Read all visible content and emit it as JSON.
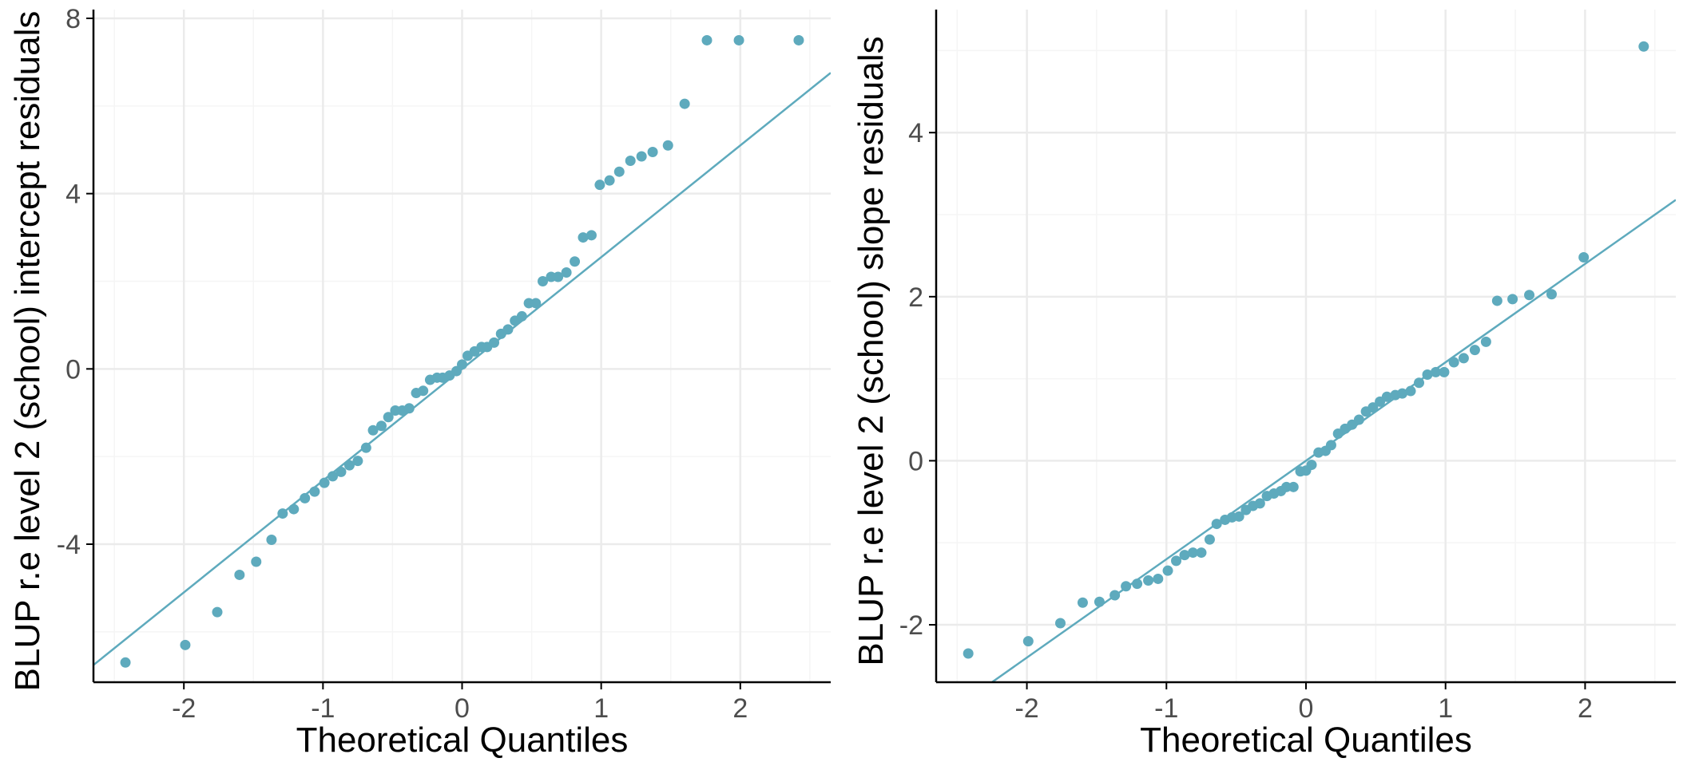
{
  "colors": {
    "point": "#5EAABD",
    "line": "#5EAABD",
    "grid_major": "#EBEBEB",
    "grid_minor": "#F5F5F5",
    "axis": "#000000",
    "tick_text": "#4D4D4D",
    "title_text": "#000000"
  },
  "chart_data": [
    {
      "type": "scatter",
      "title": "",
      "xlabel": "Theoretical Quantiles",
      "ylabel": "BLUP r.e level 2 (school) intercept residuals",
      "xlim": [
        -2.65,
        2.65
      ],
      "ylim": [
        -7.15,
        8.2
      ],
      "xticks": [
        -2,
        -1,
        0,
        1,
        2
      ],
      "xtick_labels": [
        "-2",
        "-1",
        "0",
        "1",
        "2"
      ],
      "yticks": [
        -4,
        0,
        4,
        8
      ],
      "ytick_labels": [
        "-4",
        "0",
        "4",
        "8"
      ],
      "grid": true,
      "reference_line": {
        "slope": 2.55,
        "intercept": 0.0
      },
      "x": [
        -2.42,
        -1.99,
        -1.76,
        -1.6,
        -1.48,
        -1.37,
        -1.29,
        -1.21,
        -1.13,
        -1.06,
        -0.99,
        -0.93,
        -0.87,
        -0.81,
        -0.75,
        -0.69,
        -0.64,
        -0.58,
        -0.53,
        -0.48,
        -0.43,
        -0.38,
        -0.33,
        -0.28,
        -0.23,
        -0.18,
        -0.14,
        -0.09,
        -0.04,
        0.0,
        0.04,
        0.09,
        0.14,
        0.18,
        0.23,
        0.28,
        0.33,
        0.38,
        0.43,
        0.48,
        0.53,
        0.58,
        0.64,
        0.69,
        0.75,
        0.81,
        0.87,
        0.93,
        0.99,
        1.06,
        1.13,
        1.21,
        1.29,
        1.37,
        1.48,
        1.6,
        1.76,
        1.99,
        2.42
      ],
      "y": [
        -6.7,
        -6.3,
        -5.55,
        -4.7,
        -4.4,
        -3.9,
        -3.3,
        -3.2,
        -2.95,
        -2.8,
        -2.6,
        -2.45,
        -2.35,
        -2.2,
        -2.1,
        -1.8,
        -1.4,
        -1.3,
        -1.1,
        -0.95,
        -0.95,
        -0.9,
        -0.55,
        -0.5,
        -0.25,
        -0.2,
        -0.2,
        -0.15,
        -0.05,
        0.1,
        0.3,
        0.4,
        0.5,
        0.5,
        0.6,
        0.8,
        0.9,
        1.1,
        1.2,
        1.5,
        1.5,
        2.0,
        2.1,
        2.1,
        2.2,
        2.45,
        3.0,
        3.05,
        4.2,
        4.3,
        4.5,
        4.75,
        4.85,
        4.95,
        5.1,
        6.05,
        7.5,
        7.5,
        7.5
      ]
    },
    {
      "type": "scatter",
      "title": "",
      "xlabel": "Theoretical Quantiles",
      "ylabel": "BLUP r.e level 2 (school) slope residuals",
      "xlim": [
        -2.65,
        2.65
      ],
      "ylim": [
        -2.7,
        5.5
      ],
      "xticks": [
        -2,
        -1,
        0,
        1,
        2
      ],
      "xtick_labels": [
        "-2",
        "-1",
        "0",
        "1",
        "2"
      ],
      "yticks": [
        -2,
        0,
        2,
        4
      ],
      "ytick_labels": [
        "-2",
        "0",
        "2",
        "4"
      ],
      "grid": true,
      "reference_line": {
        "slope": 1.2,
        "intercept": 0.0
      },
      "x": [
        -2.42,
        -1.99,
        -1.76,
        -1.6,
        -1.48,
        -1.37,
        -1.29,
        -1.21,
        -1.13,
        -1.06,
        -0.99,
        -0.93,
        -0.87,
        -0.81,
        -0.75,
        -0.69,
        -0.64,
        -0.58,
        -0.53,
        -0.48,
        -0.43,
        -0.38,
        -0.33,
        -0.28,
        -0.23,
        -0.18,
        -0.14,
        -0.09,
        -0.04,
        0.0,
        0.04,
        0.09,
        0.14,
        0.18,
        0.23,
        0.28,
        0.33,
        0.38,
        0.43,
        0.48,
        0.53,
        0.58,
        0.64,
        0.69,
        0.75,
        0.81,
        0.87,
        0.93,
        0.99,
        1.06,
        1.13,
        1.21,
        1.29,
        1.37,
        1.48,
        1.6,
        1.76,
        1.99,
        2.42
      ],
      "y": [
        -2.35,
        -2.2,
        -1.98,
        -1.73,
        -1.72,
        -1.64,
        -1.53,
        -1.5,
        -1.46,
        -1.44,
        -1.34,
        -1.22,
        -1.15,
        -1.12,
        -1.12,
        -0.96,
        -0.77,
        -0.72,
        -0.69,
        -0.68,
        -0.6,
        -0.55,
        -0.52,
        -0.43,
        -0.4,
        -0.37,
        -0.32,
        -0.32,
        -0.13,
        -0.12,
        -0.05,
        0.1,
        0.12,
        0.19,
        0.33,
        0.39,
        0.44,
        0.5,
        0.6,
        0.65,
        0.72,
        0.78,
        0.8,
        0.82,
        0.85,
        0.95,
        1.05,
        1.08,
        1.08,
        1.2,
        1.25,
        1.35,
        1.45,
        1.95,
        1.97,
        2.02,
        2.03,
        2.48,
        5.05
      ]
    }
  ]
}
